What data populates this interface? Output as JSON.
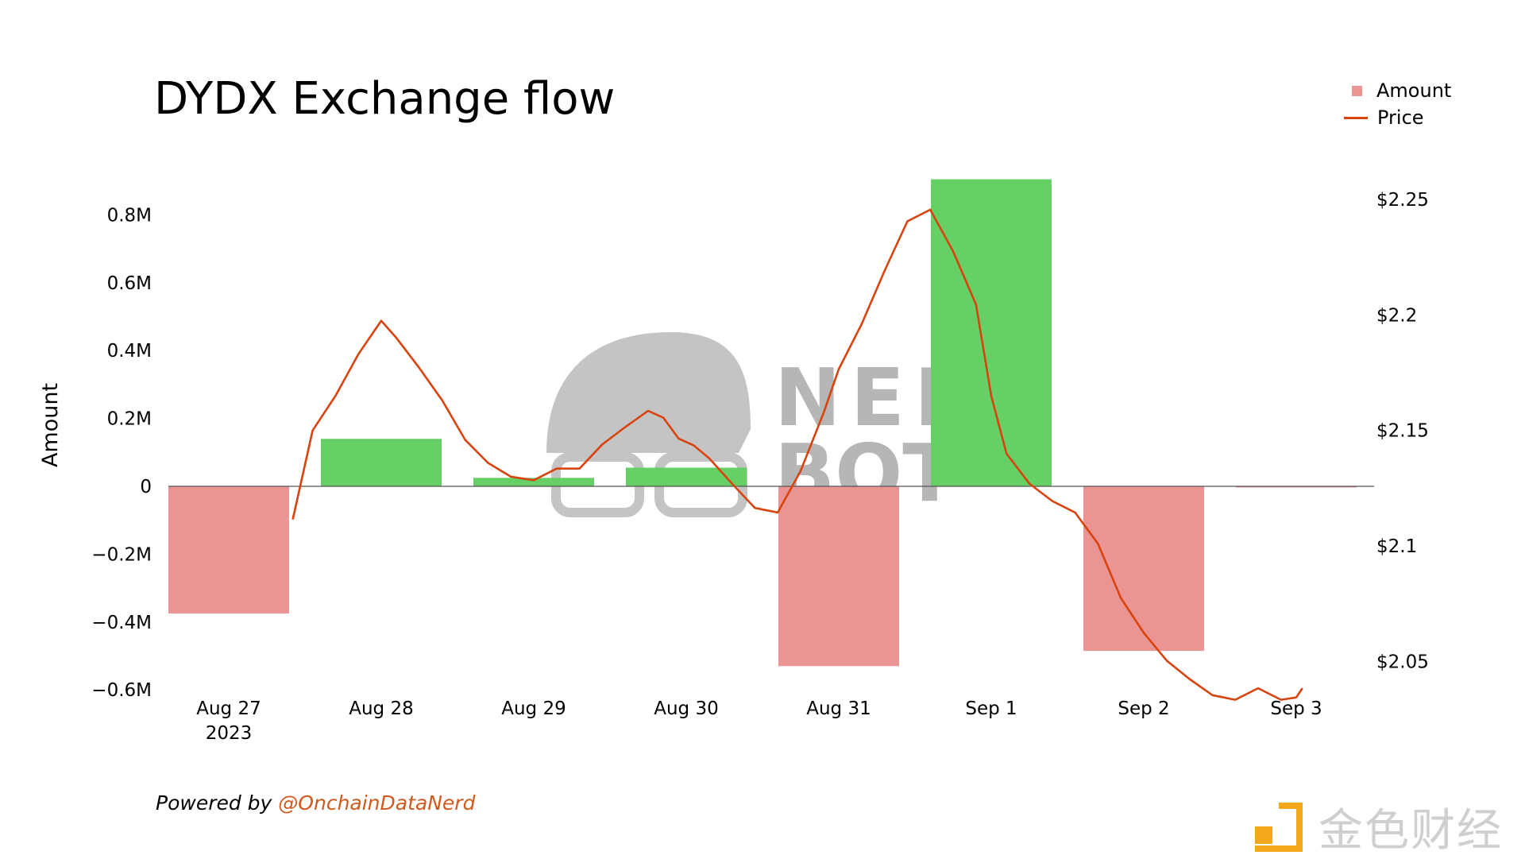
{
  "page": {
    "title": "DYDX Exchange flow",
    "powered_prefix": "Powered by ",
    "powered_handle": "@OnchainDataNerd"
  },
  "watermarks": {
    "nerdbot_line1": "NERD",
    "nerdbot_line2": "BOT",
    "brand": "金色财经"
  },
  "colors": {
    "positive_bar": "#66cf66",
    "negative_bar": "#ea9593",
    "price_line": "#d8430e",
    "legend_amount": "#ea9593"
  },
  "chart_data": {
    "type": "bar",
    "title": "DYDX Exchange flow",
    "ylabel": "Amount",
    "y2label": "",
    "ylim": [
      -0.6,
      0.9
    ],
    "y2lim": [
      2.0375,
      2.2625
    ],
    "yticks": [
      {
        "value": 0.8,
        "label": "0.8M"
      },
      {
        "value": 0.6,
        "label": "0.6M"
      },
      {
        "value": 0.4,
        "label": "0.4M"
      },
      {
        "value": 0.2,
        "label": "0.2M"
      },
      {
        "value": 0,
        "label": "0"
      },
      {
        "value": -0.2,
        "label": "−0.2M"
      },
      {
        "value": -0.4,
        "label": "−0.4M"
      },
      {
        "value": -0.6,
        "label": "−0.6M"
      }
    ],
    "y2ticks": [
      {
        "value": 2.25,
        "label": "$2.25"
      },
      {
        "value": 2.2,
        "label": "$2.2"
      },
      {
        "value": 2.15,
        "label": "$2.15"
      },
      {
        "value": 2.1,
        "label": "$2.1"
      },
      {
        "value": 2.05,
        "label": "$2.05"
      }
    ],
    "categories": [
      "Aug 27",
      "Aug 28",
      "Aug 29",
      "Aug 30",
      "Aug 31",
      "Sep 1",
      "Sep 2",
      "Sep 3"
    ],
    "year_label": "2023",
    "legend": {
      "position": "top-right",
      "entries": [
        "Amount",
        "Price"
      ]
    },
    "series": [
      {
        "name": "Amount",
        "kind": "bar",
        "values": [
          -0.375,
          0.14,
          0.025,
          0.055,
          -0.53,
          0.905,
          -0.485,
          -0.003
        ]
      },
      {
        "name": "Price",
        "kind": "line",
        "x": [
          0.42,
          0.55,
          0.7,
          0.85,
          1.0,
          1.1,
          1.25,
          1.4,
          1.55,
          1.7,
          1.85,
          2.0,
          2.15,
          2.3,
          2.45,
          2.6,
          2.75,
          2.85,
          2.95,
          3.05,
          3.15,
          3.3,
          3.45,
          3.6,
          3.75,
          3.9,
          4.0,
          4.15,
          4.3,
          4.45,
          4.6,
          4.75,
          4.9,
          5.0,
          5.1,
          5.25,
          5.4,
          5.55,
          5.7,
          5.85,
          6.0,
          6.15,
          6.3,
          6.45,
          6.6,
          6.75,
          6.9,
          7.0,
          7.04
        ],
        "values": [
          2.1115,
          2.15,
          2.165,
          2.183,
          2.1975,
          2.19,
          2.177,
          2.163,
          2.146,
          2.136,
          2.13,
          2.1285,
          2.1335,
          2.1335,
          2.144,
          2.1515,
          2.1585,
          2.1555,
          2.1465,
          2.1435,
          2.138,
          2.127,
          2.1165,
          2.1145,
          2.1325,
          2.1575,
          2.1765,
          2.196,
          2.219,
          2.2405,
          2.2455,
          2.2275,
          2.2045,
          2.165,
          2.14,
          2.127,
          2.1195,
          2.1145,
          2.101,
          2.0775,
          2.0625,
          2.0505,
          2.0425,
          2.0355,
          2.0335,
          2.0385,
          2.0335,
          2.0345,
          2.0385
        ]
      }
    ]
  }
}
